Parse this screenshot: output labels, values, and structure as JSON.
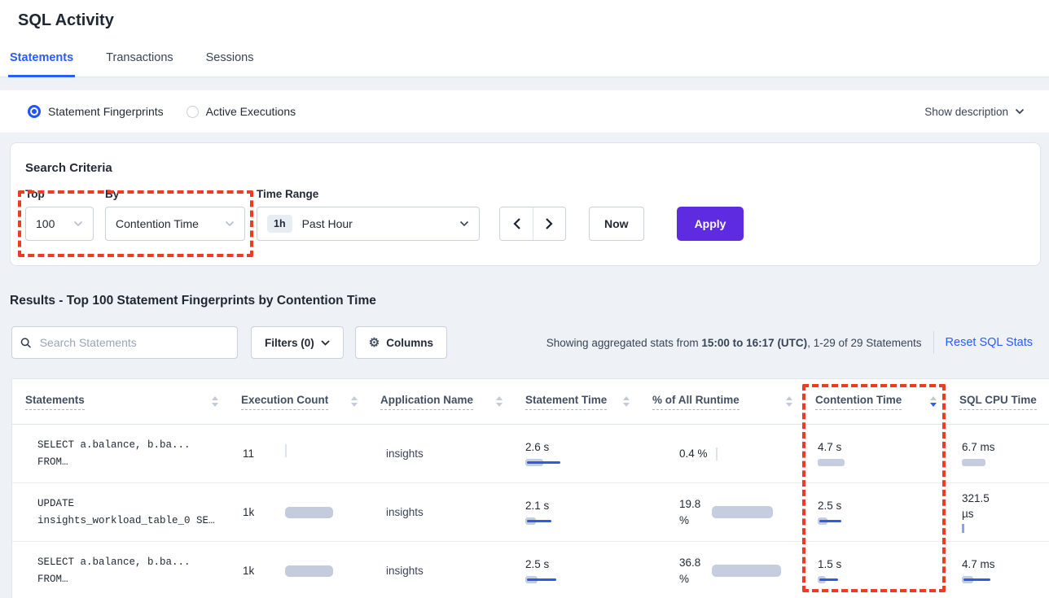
{
  "page": {
    "title": "SQL Activity"
  },
  "tabs": [
    {
      "label": "Statements",
      "active": true
    },
    {
      "label": "Transactions",
      "active": false
    },
    {
      "label": "Sessions",
      "active": false
    }
  ],
  "view_toggle": {
    "options": [
      {
        "label": "Statement Fingerprints",
        "selected": true
      },
      {
        "label": "Active Executions",
        "selected": false
      }
    ],
    "show_description": "Show description"
  },
  "search_criteria": {
    "heading": "Search Criteria",
    "top_label": "Top",
    "top_value": "100",
    "by_label": "By",
    "by_value": "Contention Time",
    "time_range_label": "Time Range",
    "time_range_badge": "1h",
    "time_range_value": "Past Hour",
    "now_label": "Now",
    "apply_label": "Apply"
  },
  "results": {
    "heading": "Results - Top 100 Statement Fingerprints by Contention Time",
    "search_placeholder": "Search Statements",
    "filters_label": "Filters (0)",
    "columns_label": "Columns",
    "showing_prefix": "Showing aggregated stats from ",
    "showing_range": "15:00 to 16:17 (UTC)",
    "showing_suffix": ", 1-29 of 29 Statements",
    "reset_label": "Reset SQL Stats"
  },
  "table": {
    "columns": [
      {
        "label": "Statements",
        "sort": "none"
      },
      {
        "label": "Execution Count",
        "sort": "none"
      },
      {
        "label": "Application Name",
        "sort": "none"
      },
      {
        "label": "Statement Time",
        "sort": "none"
      },
      {
        "label": "% of All Runtime",
        "sort": "none"
      },
      {
        "label": "Contention Time",
        "sort": "desc"
      },
      {
        "label": "SQL CPU Time",
        "sort": "none"
      }
    ],
    "rows": [
      {
        "statement": [
          "SELECT a.balance, b.ba...",
          "FROM…"
        ],
        "execution_count": {
          "value": "11",
          "bar": {
            "t": "gray"
          }
        },
        "application_name": "insights",
        "statement_time": {
          "value": "2.6 s",
          "bar": {
            "g": 22,
            "l": 41
          }
        },
        "runtime_pct": {
          "value": "0.4 %",
          "layout": "inline",
          "bar": {
            "t": "gray"
          }
        },
        "contention_time": {
          "value": "4.7 s",
          "bar": {
            "g": 33
          }
        },
        "sql_cpu_time": {
          "value": "6.7 ms",
          "bar": {
            "g": 29
          }
        }
      },
      {
        "statement": [
          "UPDATE",
          "insights_workload_table_0 SE…"
        ],
        "execution_count": {
          "value": "1k",
          "bar": {
            "g": 59
          }
        },
        "application_name": "insights",
        "statement_time": {
          "value": "2.1 s",
          "bar": {
            "g": 13,
            "l": 30
          }
        },
        "runtime_pct": {
          "value": "19.8",
          "unit": "%",
          "layout": "side",
          "bar": {
            "g": 75
          }
        },
        "contention_time": {
          "value": "2.5 s",
          "bar": {
            "g": 12,
            "l": 27
          }
        },
        "sql_cpu_time": {
          "value": "321.5",
          "unit": "µs",
          "bar": {
            "t": "blue"
          }
        }
      },
      {
        "statement": [
          "SELECT a.balance, b.ba...",
          "FROM…"
        ],
        "execution_count": {
          "value": "1k",
          "bar": {
            "g": 59
          }
        },
        "application_name": "insights",
        "statement_time": {
          "value": "2.5 s",
          "bar": {
            "g": 15,
            "l": 36
          }
        },
        "runtime_pct": {
          "value": "36.8",
          "unit": "%",
          "layout": "side",
          "bar": {
            "g": 85
          }
        },
        "contention_time": {
          "value": "1.5 s",
          "bar": {
            "g": 10,
            "l": 23
          }
        },
        "sql_cpu_time": {
          "value": "4.7 ms",
          "bar": {
            "g": 14,
            "l": 33
          }
        }
      }
    ]
  },
  "colors": {
    "accent_blue": "#2a5cff",
    "apply_purple": "#5f2be0",
    "highlight_red": "#ee3c24",
    "bar_gray": "#c6cdde",
    "bar_blue": "#2b5be8"
  }
}
